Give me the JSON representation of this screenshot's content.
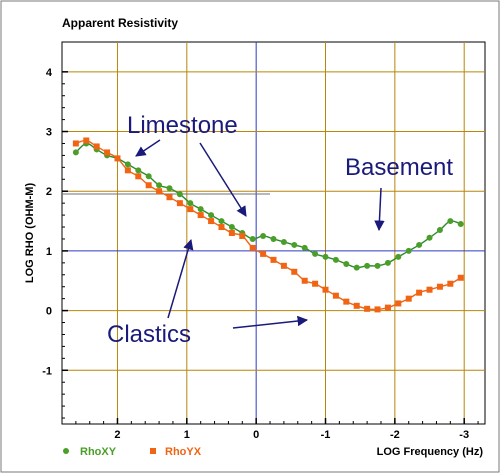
{
  "chart_data": {
    "type": "scatter",
    "title": "Apparent Resistivity",
    "xlabel": "LOG Frequency (Hz)",
    "ylabel": "LOG RHO (OHM-M)",
    "xlim": [
      2.8,
      -3.3
    ],
    "ylim": [
      -1.9,
      4.5
    ],
    "x_ticks": [
      2,
      1,
      0,
      -1,
      -2,
      -3
    ],
    "x_tick_labels": [
      "2",
      "1",
      "0",
      "-1",
      "-2",
      "-3"
    ],
    "y_ticks": [
      4,
      3,
      2,
      1,
      0,
      -1
    ],
    "y_tick_labels": [
      "4",
      "3",
      "2",
      "1",
      "0",
      "-1"
    ],
    "grid": true,
    "legend_position": "bottom-left",
    "colors": {
      "grid": "#b8860b",
      "axis_lines": "#2e3bbf",
      "rhoxy": "#4a9e2a",
      "rhoyx": "#f06414",
      "fit": "#2a8a2a",
      "annotation": "#1a1a7a"
    },
    "series": [
      {
        "name": "RhoXY",
        "marker": "circle",
        "x": [
          2.6,
          2.45,
          2.3,
          2.15,
          2.0,
          1.85,
          1.7,
          1.55,
          1.4,
          1.25,
          1.1,
          0.95,
          0.8,
          0.65,
          0.5,
          0.35,
          0.2,
          0.05,
          -0.1,
          -0.25,
          -0.4,
          -0.55,
          -0.7,
          -0.85,
          -1.0,
          -1.15,
          -1.3,
          -1.45,
          -1.6,
          -1.75,
          -1.9,
          -2.05,
          -2.2,
          -2.35,
          -2.5,
          -2.65,
          -2.8,
          -2.95
        ],
        "y": [
          2.65,
          2.8,
          2.7,
          2.6,
          2.55,
          2.45,
          2.35,
          2.25,
          2.1,
          2.05,
          1.95,
          1.8,
          1.7,
          1.6,
          1.5,
          1.4,
          1.3,
          1.2,
          1.25,
          1.2,
          1.15,
          1.1,
          1.05,
          0.95,
          0.9,
          0.85,
          0.78,
          0.72,
          0.75,
          0.75,
          0.8,
          0.9,
          1.0,
          1.1,
          1.22,
          1.35,
          1.5,
          1.45
        ]
      },
      {
        "name": "RhoYX",
        "marker": "square",
        "x": [
          2.6,
          2.45,
          2.3,
          2.15,
          2.0,
          1.85,
          1.7,
          1.55,
          1.4,
          1.25,
          1.1,
          0.95,
          0.8,
          0.65,
          0.5,
          0.35,
          0.2,
          0.05,
          -0.1,
          -0.25,
          -0.4,
          -0.55,
          -0.7,
          -0.85,
          -1.0,
          -1.15,
          -1.3,
          -1.45,
          -1.6,
          -1.75,
          -1.9,
          -2.05,
          -2.2,
          -2.35,
          -2.5,
          -2.65,
          -2.8,
          -2.95
        ],
        "y": [
          2.8,
          2.85,
          2.75,
          2.65,
          2.55,
          2.35,
          2.25,
          2.1,
          2.0,
          1.9,
          1.8,
          1.7,
          1.6,
          1.5,
          1.4,
          1.3,
          1.25,
          1.05,
          0.95,
          0.85,
          0.75,
          0.65,
          0.5,
          0.45,
          0.35,
          0.25,
          0.15,
          0.08,
          0.03,
          0.02,
          0.05,
          0.12,
          0.2,
          0.3,
          0.35,
          0.4,
          0.45,
          0.55
        ]
      }
    ],
    "annotations": [
      {
        "text": "Limestone",
        "x": 1.95,
        "y": 3.15
      },
      {
        "text": "Basement",
        "x": -1.8,
        "y": 2.45
      },
      {
        "text": "Clastics",
        "x": 2.1,
        "y": -0.4
      }
    ]
  }
}
